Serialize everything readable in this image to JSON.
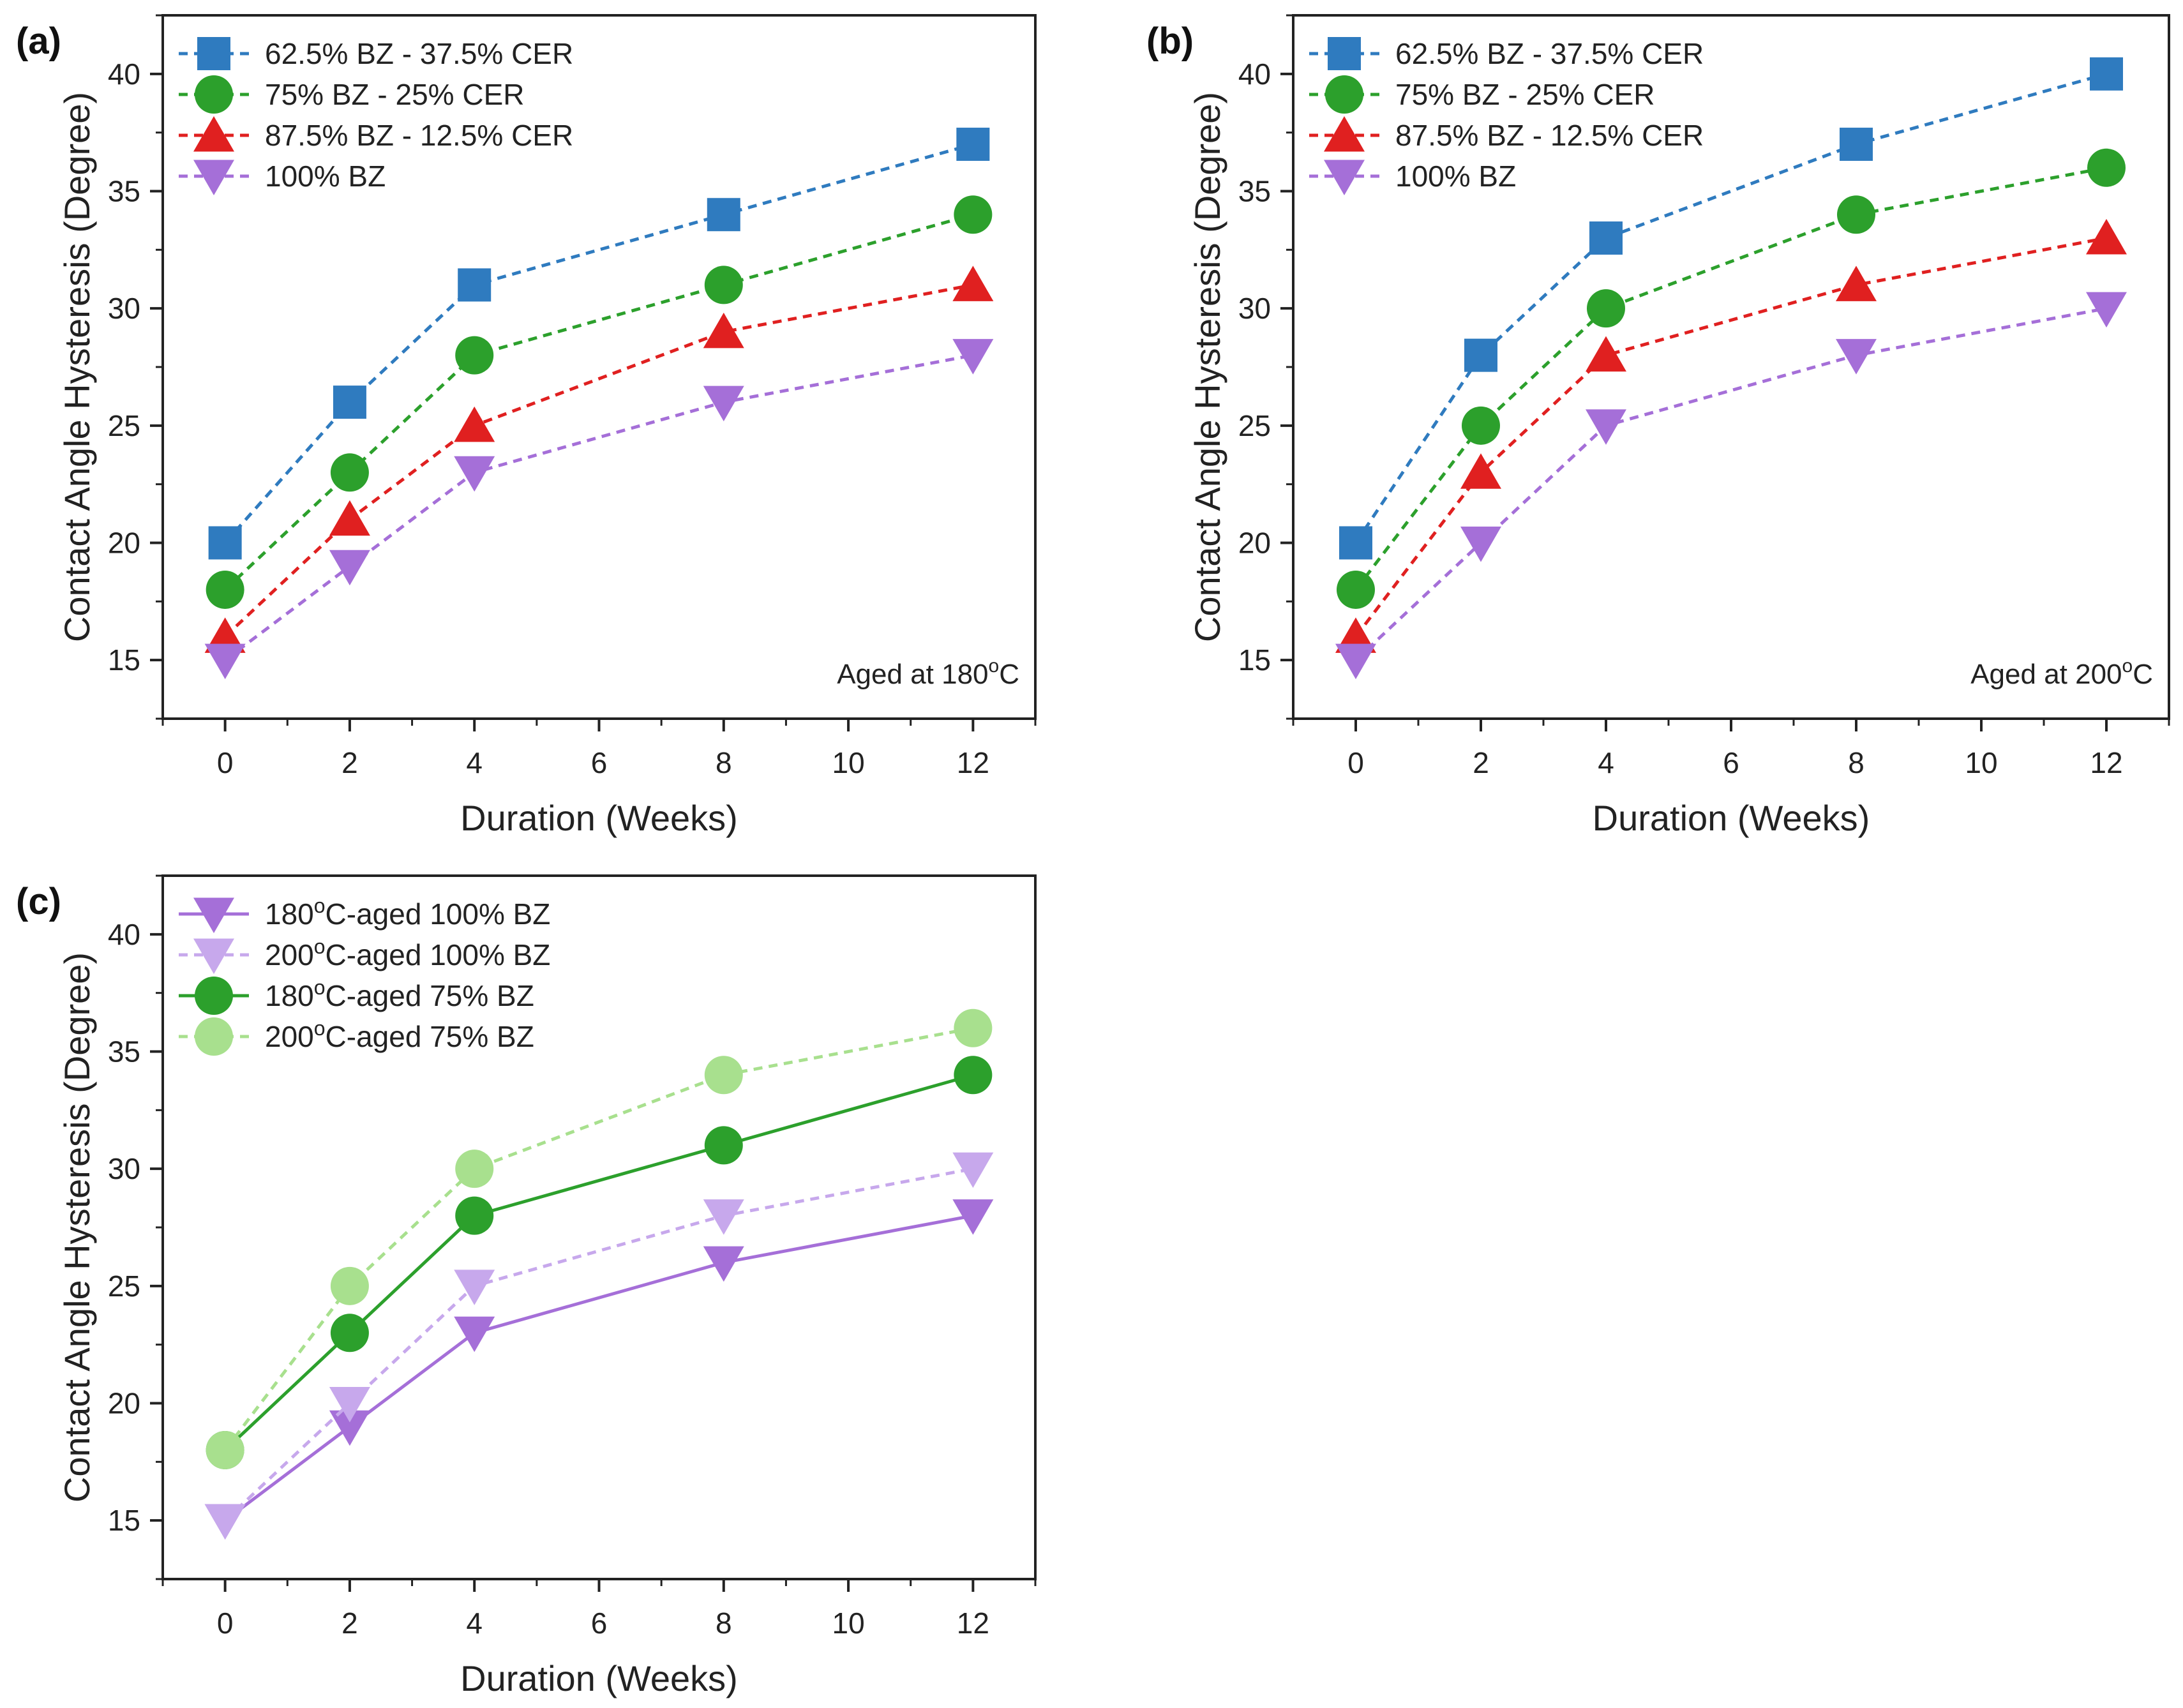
{
  "figure": {
    "title": ""
  },
  "colors": {
    "blue": "#2f7bbf",
    "green": "#2ca02c",
    "red": "#e02020",
    "purple": "#a56fd8",
    "light_purple": "#c7a8ec",
    "light_green": "#a8e08e"
  },
  "chart_data": [
    {
      "panel_label": "(a)",
      "type": "line",
      "xlabel": "Duration (Weeks)",
      "ylabel": "Contact Angle Hysteresis (Degree)",
      "xlim": [
        -1,
        13
      ],
      "ylim": [
        12.5,
        42.5
      ],
      "xticks": [
        0,
        2,
        4,
        6,
        8,
        10,
        12
      ],
      "yticks": [
        15,
        20,
        25,
        30,
        35,
        40
      ],
      "x": [
        0,
        2,
        4,
        8,
        12
      ],
      "annotation": {
        "prefix": "Aged at 180",
        "sup": "o",
        "suffix": "C"
      },
      "legend_position": "top-left",
      "series": [
        {
          "name": "62.5% BZ - 37.5% CER",
          "values": [
            20,
            26,
            31,
            34,
            37
          ],
          "color": "#2f7bbf",
          "marker": "square",
          "dash": true
        },
        {
          "name": "75% BZ - 25% CER",
          "values": [
            18,
            23,
            28,
            31,
            34
          ],
          "color": "#2ca02c",
          "marker": "circle",
          "dash": true
        },
        {
          "name": "87.5% BZ - 12.5% CER",
          "values": [
            16,
            21,
            25,
            29,
            31
          ],
          "color": "#e02020",
          "marker": "triangle-up",
          "dash": true
        },
        {
          "name": "100% BZ",
          "values": [
            15,
            19,
            23,
            26,
            28
          ],
          "color": "#a56fd8",
          "marker": "triangle-down",
          "dash": true
        }
      ]
    },
    {
      "panel_label": "(b)",
      "type": "line",
      "xlabel": "Duration (Weeks)",
      "ylabel": "Contact Angle Hysteresis (Degree)",
      "xlim": [
        -1,
        13
      ],
      "ylim": [
        12.5,
        42.5
      ],
      "xticks": [
        0,
        2,
        4,
        6,
        8,
        10,
        12
      ],
      "yticks": [
        15,
        20,
        25,
        30,
        35,
        40
      ],
      "x": [
        0,
        2,
        4,
        8,
        12
      ],
      "annotation": {
        "prefix": "Aged at 200",
        "sup": "o",
        "suffix": "C"
      },
      "legend_position": "top-left",
      "series": [
        {
          "name": "62.5% BZ - 37.5% CER",
          "values": [
            20,
            28,
            33,
            37,
            40
          ],
          "color": "#2f7bbf",
          "marker": "square",
          "dash": true
        },
        {
          "name": "75% BZ - 25% CER",
          "values": [
            18,
            25,
            30,
            34,
            36
          ],
          "color": "#2ca02c",
          "marker": "circle",
          "dash": true
        },
        {
          "name": "87.5% BZ - 12.5% CER",
          "values": [
            16,
            23,
            28,
            31,
            33
          ],
          "color": "#e02020",
          "marker": "triangle-up",
          "dash": true
        },
        {
          "name": "100% BZ",
          "values": [
            15,
            20,
            25,
            28,
            30
          ],
          "color": "#a56fd8",
          "marker": "triangle-down",
          "dash": true
        }
      ]
    },
    {
      "panel_label": "(c)",
      "type": "line",
      "xlabel": "Duration (Weeks)",
      "ylabel": "Contact Angle Hysteresis (Degree)",
      "xlim": [
        -1,
        13
      ],
      "ylim": [
        12.5,
        42.5
      ],
      "xticks": [
        0,
        2,
        4,
        6,
        8,
        10,
        12
      ],
      "yticks": [
        15,
        20,
        25,
        30,
        35,
        40
      ],
      "x": [
        0,
        2,
        4,
        8,
        12
      ],
      "annotation": null,
      "legend_position": "top-left",
      "series": [
        {
          "name_prefix": "180",
          "name_sup": "o",
          "name_suffix": "C-aged 100% BZ",
          "values": [
            15,
            19,
            23,
            26,
            28
          ],
          "color": "#a56fd8",
          "marker": "triangle-down",
          "dash": false
        },
        {
          "name_prefix": "200",
          "name_sup": "o",
          "name_suffix": "C-aged 100% BZ",
          "values": [
            15,
            20,
            25,
            28,
            30
          ],
          "color": "#c7a8ec",
          "marker": "triangle-down",
          "dash": true
        },
        {
          "name_prefix": "180",
          "name_sup": "o",
          "name_suffix": "C-aged 75% BZ",
          "values": [
            18,
            23,
            28,
            31,
            34
          ],
          "color": "#2ca02c",
          "marker": "circle",
          "dash": false
        },
        {
          "name_prefix": "200",
          "name_sup": "o",
          "name_suffix": "C-aged 75% BZ",
          "values": [
            18,
            25,
            30,
            34,
            36
          ],
          "color": "#a8e08e",
          "marker": "circle",
          "dash": true
        }
      ]
    }
  ]
}
